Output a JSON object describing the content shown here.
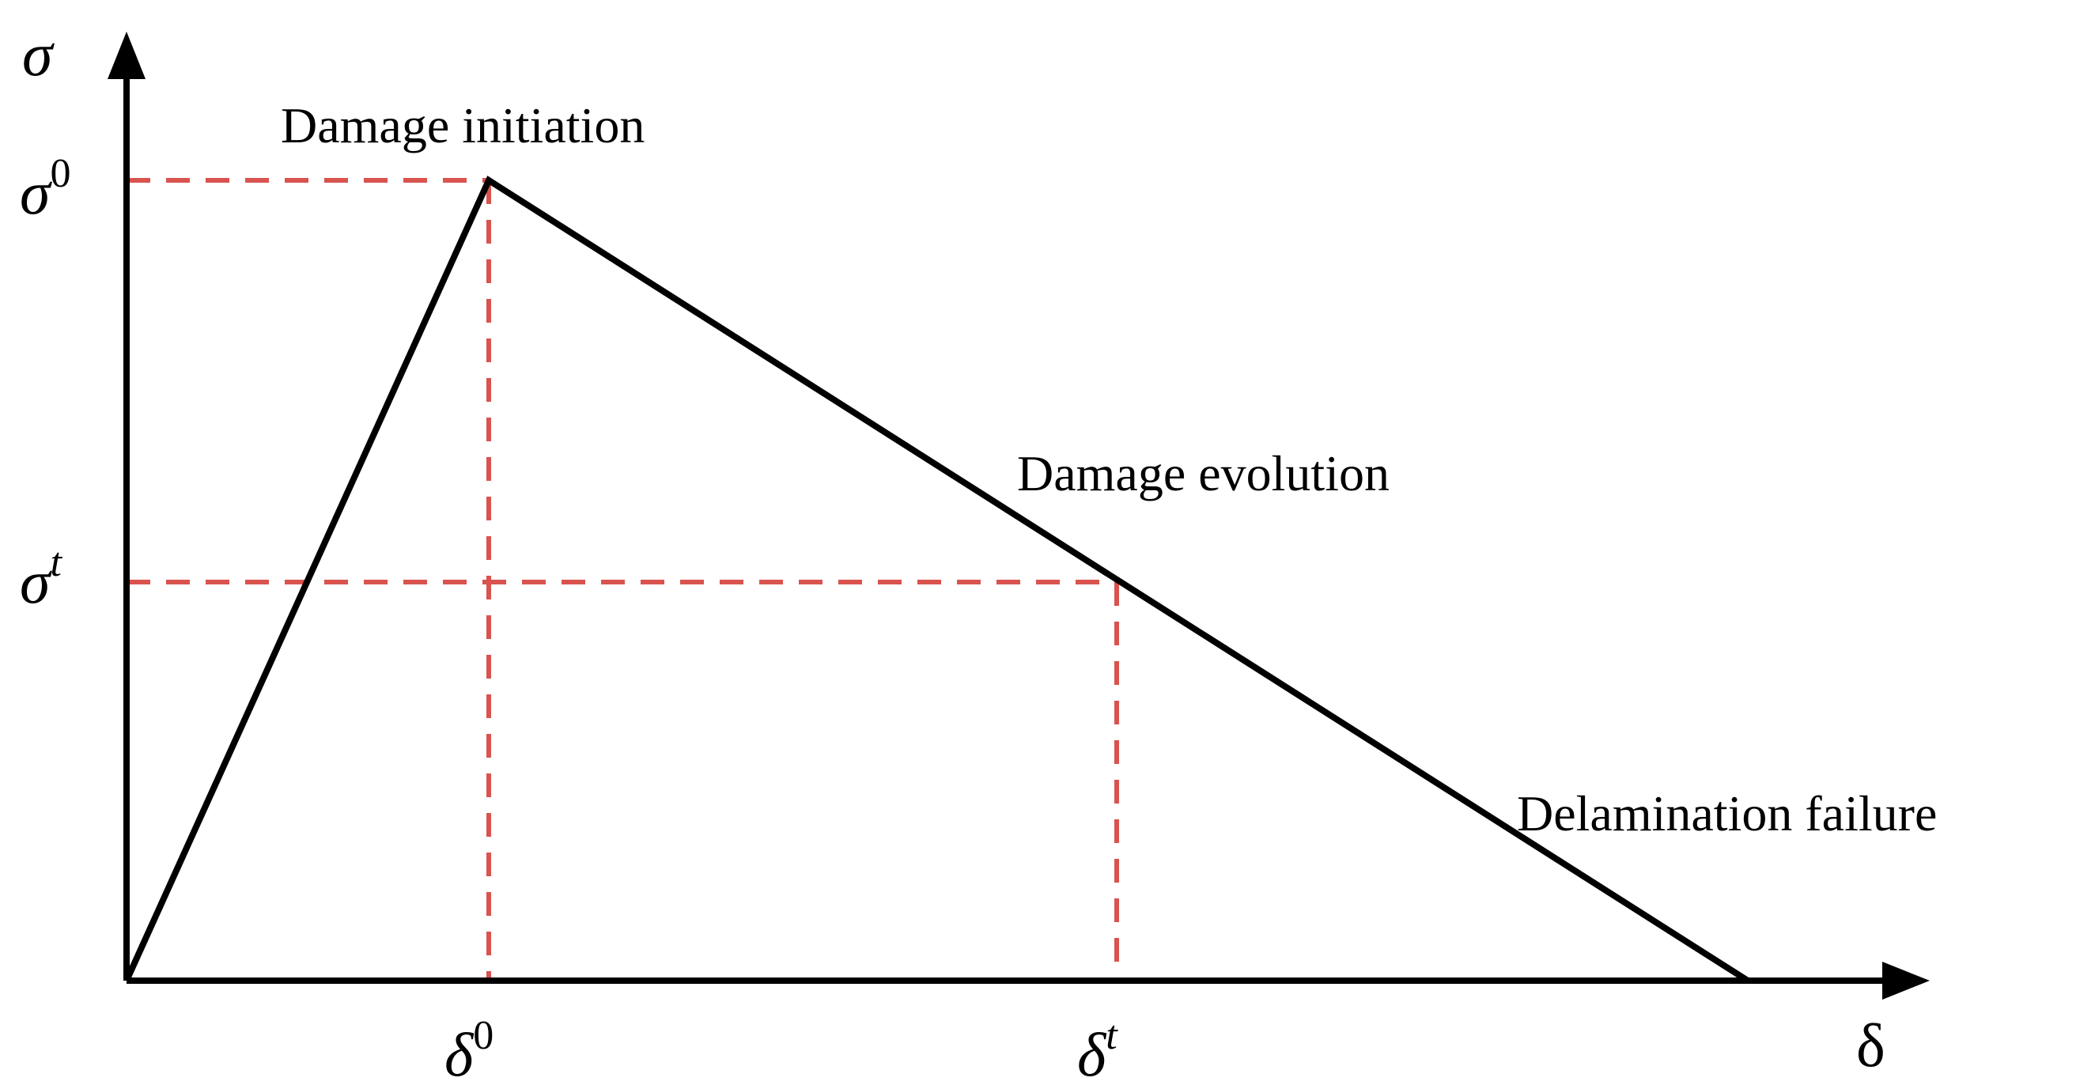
{
  "axes": {
    "y_label": "σ",
    "x_label": "δ"
  },
  "y_ticks": [
    {
      "base": "σ",
      "sup": "0"
    },
    {
      "base": "σ",
      "sup": "t"
    }
  ],
  "x_ticks": [
    {
      "base": "δ",
      "sup": "0"
    },
    {
      "base": "δ",
      "sup": "t"
    }
  ],
  "annotations": {
    "initiation": "Damage initiation",
    "evolution": "Damage evolution",
    "failure": "Delamination failure"
  },
  "colors": {
    "curve": "#000000",
    "guides": "#d9534f"
  }
}
